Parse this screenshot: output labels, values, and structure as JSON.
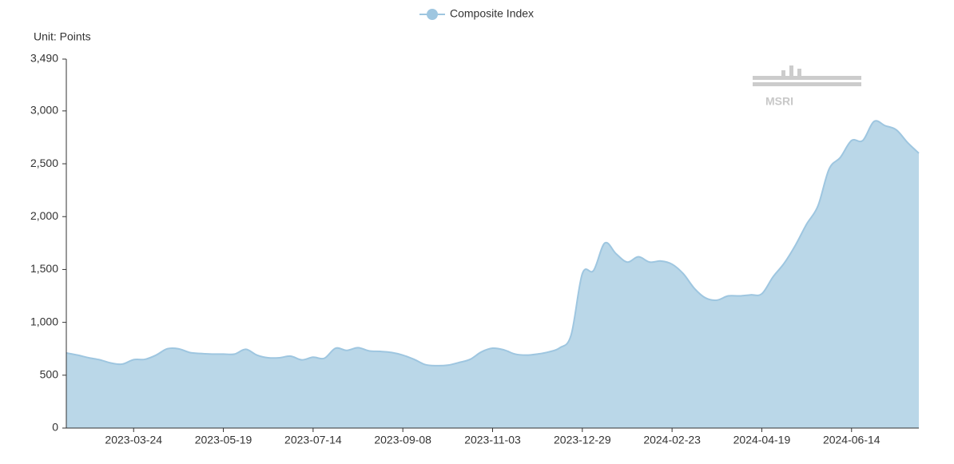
{
  "chart_data": {
    "type": "area",
    "legend": "Composite Index",
    "y_label": "Unit: Points",
    "watermark": "MSRI",
    "color": "#9ec6e0",
    "fill": "#bad7e8",
    "categories": [
      null,
      null,
      null,
      null,
      null,
      null,
      "2023-03-24",
      null,
      null,
      null,
      null,
      null,
      null,
      null,
      "2023-05-19",
      null,
      null,
      null,
      null,
      null,
      null,
      null,
      "2023-07-14",
      null,
      null,
      null,
      null,
      null,
      null,
      null,
      "2023-09-08",
      null,
      null,
      null,
      null,
      null,
      null,
      null,
      "2023-11-03",
      null,
      null,
      null,
      null,
      null,
      null,
      null,
      "2023-12-29",
      null,
      null,
      null,
      null,
      null,
      null,
      null,
      "2024-02-23",
      null,
      null,
      null,
      null,
      null,
      null,
      null,
      "2024-04-19",
      null,
      null,
      null,
      null,
      null,
      null,
      null,
      "2024-06-14",
      null,
      null,
      null,
      null,
      null,
      null
    ],
    "values": [
      710,
      690,
      665,
      645,
      615,
      605,
      647,
      650,
      690,
      750,
      750,
      715,
      705,
      700,
      700,
      700,
      745,
      690,
      665,
      665,
      680,
      645,
      670,
      660,
      755,
      735,
      760,
      730,
      725,
      715,
      690,
      650,
      600,
      590,
      595,
      620,
      650,
      720,
      755,
      740,
      700,
      690,
      700,
      720,
      760,
      880,
      1460,
      1490,
      1750,
      1650,
      1570,
      1620,
      1570,
      1580,
      1550,
      1460,
      1320,
      1230,
      1210,
      1250,
      1250,
      1260,
      1270,
      1430,
      1560,
      1730,
      1930,
      2100,
      2450,
      2560,
      2720,
      2720,
      2900,
      2860,
      2820,
      2700,
      2600
    ],
    "ylim": [
      0,
      3490
    ],
    "yticks": [
      0,
      500,
      {
        "value": 1000,
        "label": "1,000"
      },
      {
        "value": 1500,
        "label": "1,500"
      },
      {
        "value": 2000,
        "label": "2,000"
      },
      {
        "value": 2500,
        "label": "2,500"
      },
      {
        "value": 3000,
        "label": "3,000"
      },
      {
        "value": 3490,
        "label": "3,490"
      }
    ]
  }
}
